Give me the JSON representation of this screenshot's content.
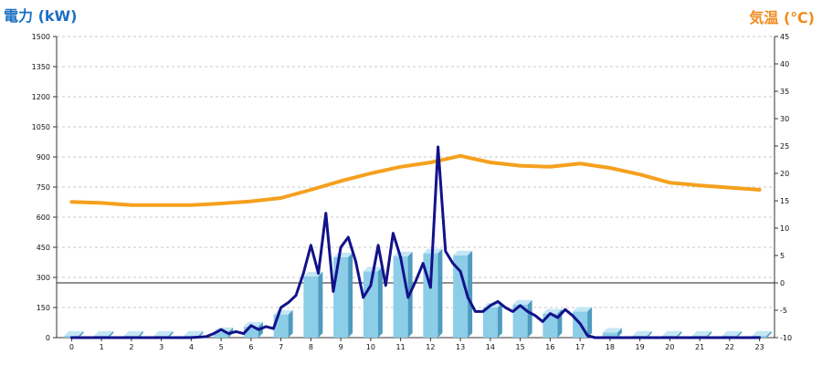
{
  "units": {
    "left": "電力 (kW)",
    "right": "気温 (℃)"
  },
  "colors": {
    "power_line": "#12128a",
    "temp_line": "#f5a01e",
    "bar_front": "#8ccde8",
    "bar_side": "#4e9bc0",
    "bar_top": "#c4e6f4",
    "grid": "#c8c8c8",
    "unit_left": "#1a6fc4",
    "unit_right": "#f08c1e"
  },
  "chart_data": {
    "type": "bar",
    "categories": [
      "0",
      "1",
      "2",
      "3",
      "4",
      "5",
      "6",
      "7",
      "8",
      "9",
      "10",
      "11",
      "12",
      "13",
      "14",
      "15",
      "16",
      "17",
      "18",
      "19",
      "20",
      "21",
      "22",
      "23"
    ],
    "y_left": {
      "min": 0,
      "max": 1500,
      "ticks": [
        "0",
        "150",
        "300",
        "450",
        "600",
        "750",
        "900",
        "1050",
        "1200",
        "1350",
        "1500"
      ]
    },
    "y_right": {
      "min": -10,
      "max": 45,
      "ticks": [
        "-10",
        "-5",
        "0",
        "5",
        "10",
        "15",
        "20",
        "25",
        "30",
        "35",
        "40",
        "45"
      ]
    },
    "grid": true,
    "series": [
      {
        "kind": "bar",
        "axis": "left",
        "values": [
          10,
          10,
          10,
          10,
          10,
          28,
          55,
          115,
          305,
          400,
          330,
          405,
          420,
          410,
          150,
          165,
          120,
          130,
          25,
          10,
          10,
          10,
          10,
          10
        ]
      },
      {
        "kind": "line",
        "axis": "right",
        "x": [
          0,
          1,
          2,
          3,
          4,
          5,
          6,
          7,
          8,
          9,
          10,
          11,
          12,
          12.5,
          13,
          14,
          15,
          16,
          17,
          18,
          19,
          20,
          21,
          22,
          23
        ],
        "values": [
          14.8,
          14.6,
          14.2,
          14.2,
          14.2,
          14.5,
          14.9,
          15.5,
          17.0,
          18.6,
          20.0,
          21.2,
          22.0,
          22.6,
          23.2,
          22.0,
          21.4,
          21.2,
          21.8,
          21.0,
          19.8,
          18.3,
          17.8,
          17.4,
          17.0
        ]
      },
      {
        "kind": "line",
        "axis": "left",
        "x": [
          0,
          1,
          2,
          3,
          4,
          4.5,
          4.75,
          5,
          5.25,
          5.5,
          5.75,
          6,
          6.25,
          6.5,
          6.75,
          7,
          7.25,
          7.5,
          7.75,
          8,
          8.25,
          8.5,
          8.75,
          9,
          9.25,
          9.5,
          9.75,
          10,
          10.25,
          10.5,
          10.75,
          11,
          11.25,
          11.5,
          11.75,
          12,
          12.25,
          12.5,
          12.75,
          13,
          13.25,
          13.5,
          13.75,
          14,
          14.25,
          14.5,
          14.75,
          15,
          15.25,
          15.5,
          15.75,
          16,
          16.25,
          16.5,
          16.75,
          17,
          17.25,
          17.5,
          17.75,
          18,
          18.5,
          19,
          20,
          21,
          22,
          23
        ],
        "values": [
          0,
          0,
          0,
          0,
          0,
          5,
          20,
          40,
          20,
          30,
          20,
          60,
          40,
          55,
          45,
          150,
          175,
          210,
          320,
          460,
          320,
          620,
          230,
          450,
          500,
          380,
          200,
          260,
          460,
          260,
          520,
          400,
          200,
          280,
          370,
          250,
          950,
          430,
          370,
          330,
          200,
          130,
          130,
          160,
          180,
          150,
          130,
          160,
          130,
          110,
          80,
          120,
          100,
          140,
          110,
          70,
          10,
          0,
          0,
          0,
          0,
          0,
          0,
          0,
          0,
          0
        ]
      }
    ]
  }
}
